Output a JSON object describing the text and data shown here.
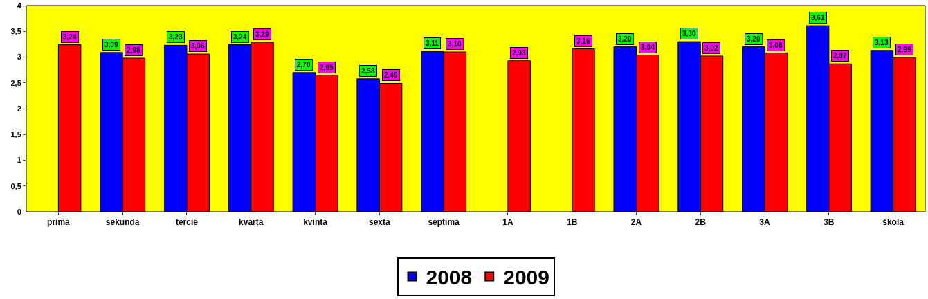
{
  "chart_data": {
    "type": "bar",
    "categories": [
      "prima",
      "sekunda",
      "tercie",
      "kvarta",
      "kvinta",
      "sexta",
      "septima",
      "1A",
      "1B",
      "2A",
      "2B",
      "3A",
      "3B",
      "škola"
    ],
    "series": [
      {
        "name": "2008",
        "color": "#0000ff",
        "values": [
          null,
          3.09,
          3.23,
          3.24,
          2.7,
          2.58,
          3.11,
          null,
          null,
          3.2,
          3.3,
          3.2,
          3.61,
          3.13
        ],
        "value_labels": [
          null,
          "3,09",
          "3,23",
          "3,24",
          "2,70",
          "2,58",
          "3,11",
          null,
          null,
          "3,20",
          "3,30",
          "3,20",
          "3,61",
          "3,13"
        ]
      },
      {
        "name": "2009",
        "color": "#ff0000",
        "values": [
          3.24,
          2.98,
          3.06,
          3.29,
          2.65,
          2.49,
          3.1,
          2.93,
          3.16,
          3.04,
          3.02,
          3.08,
          2.87,
          2.99
        ],
        "value_labels": [
          "3,24",
          "2,98",
          "3,06",
          "3,29",
          "2,65",
          "2,49",
          "3,10",
          "2,93",
          "3,16",
          "3,04",
          "3,02",
          "3,08",
          "2,87",
          "2,99"
        ]
      }
    ],
    "ylim": [
      0,
      4
    ],
    "yticks": [
      0,
      {
        "value": 0.5,
        "label": "0,5"
      },
      1,
      {
        "value": 1.5,
        "label": "1,5"
      },
      2,
      {
        "value": 2.5,
        "label": "2,5"
      },
      3,
      {
        "value": 3.5,
        "label": "3,5"
      },
      4
    ],
    "grid": false,
    "legend": "bottom"
  }
}
